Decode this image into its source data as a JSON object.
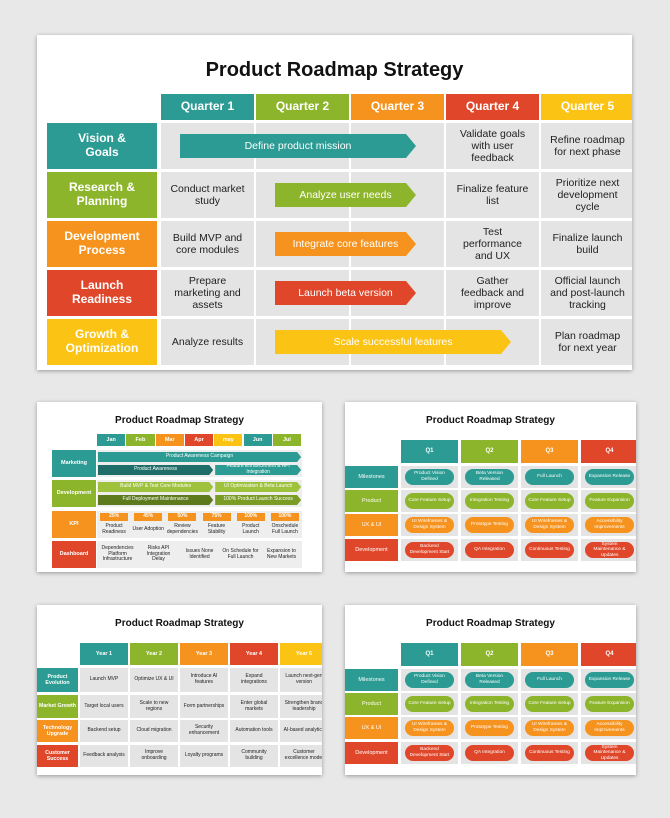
{
  "main": {
    "title": "Product Roadmap Strategy",
    "columns": [
      "Quarter 1",
      "Quarter 2",
      "Quarter 3",
      "Quarter 4",
      "Quarter 5"
    ],
    "rows": [
      {
        "label": "Vision & Goals",
        "items": [
          {
            "text": "Define product mission",
            "cols": [
              0,
              2
            ]
          },
          {
            "text": "Validate goals with user feedback",
            "cols": [
              3,
              3
            ]
          },
          {
            "text": "Refine roadmap for next phase",
            "cols": [
              4,
              4
            ]
          }
        ]
      },
      {
        "label": "Research & Planning",
        "items": [
          {
            "text": "Conduct market study",
            "cols": [
              0,
              0
            ]
          },
          {
            "text": "Analyze user needs",
            "cols": [
              1,
              2
            ]
          },
          {
            "text": "Finalize feature list",
            "cols": [
              3,
              3
            ]
          },
          {
            "text": "Prioritize next development cycle",
            "cols": [
              4,
              4
            ]
          }
        ]
      },
      {
        "label": "Development Process",
        "items": [
          {
            "text": "Build MVP and core modules",
            "cols": [
              0,
              0
            ]
          },
          {
            "text": "Integrate core features",
            "cols": [
              1,
              2
            ]
          },
          {
            "text": "Test performance and UX",
            "cols": [
              3,
              3
            ]
          },
          {
            "text": "Finalize launch build",
            "cols": [
              4,
              4
            ]
          }
        ]
      },
      {
        "label": "Launch Readiness",
        "items": [
          {
            "text": "Prepare marketing and assets",
            "cols": [
              0,
              0
            ]
          },
          {
            "text": "Launch beta version",
            "cols": [
              1,
              2
            ]
          },
          {
            "text": "Gather feedback and improve",
            "cols": [
              3,
              3
            ]
          },
          {
            "text": "Official launch and post-launch tracking",
            "cols": [
              4,
              4
            ]
          }
        ]
      },
      {
        "label": "Growth & Optimization",
        "items": [
          {
            "text": "Analyze results",
            "cols": [
              0,
              0
            ]
          },
          {
            "text": "Scale successful features",
            "cols": [
              1,
              3
            ]
          },
          {
            "text": "Plan roadmap for next year",
            "cols": [
              4,
              4
            ]
          }
        ]
      }
    ]
  },
  "months_slide": {
    "title": "Product Roadmap Strategy",
    "columns": [
      "Jan",
      "Feb",
      "Mar",
      "Apr",
      "may",
      "Jun",
      "Jul"
    ],
    "marketing": {
      "label": "Marketing",
      "lanes": [
        [
          {
            "text": "Product Awareness Campaign",
            "cols": [
              0,
              6
            ]
          }
        ],
        [
          {
            "text": "Product Awareness",
            "cols": [
              0,
              3
            ]
          },
          {
            "text": "Feature Enhancement & API Integration",
            "cols": [
              4,
              6
            ]
          }
        ]
      ]
    },
    "development": {
      "label": "Development",
      "lanes": [
        [
          {
            "text": "Build MVP & Test Core Modules",
            "cols": [
              0,
              3
            ]
          },
          {
            "text": "UI Optimization & Beta Launch",
            "cols": [
              4,
              6
            ]
          }
        ],
        [
          {
            "text": "Full Deployment Maintenance",
            "cols": [
              0,
              3
            ]
          },
          {
            "text": "100% Product Launch Success",
            "cols": [
              4,
              6
            ]
          }
        ]
      ]
    },
    "kpi": {
      "label": "KPI",
      "cells": [
        {
          "pct": "25%",
          "text": "Product Readiness"
        },
        {
          "pct": "45%",
          "text": "User Adoption"
        },
        {
          "pct": "50%",
          "text": "Review dependencies"
        },
        {
          "pct": "75%",
          "text": "Feature Stability"
        },
        {
          "pct": "100%",
          "text": "Product Launch"
        },
        {
          "pct": "100%",
          "text": "Onschedule Full Launch"
        }
      ]
    },
    "dashboard": {
      "label": "Dashboard",
      "cells": [
        "Dependencies Platform Infrastructure",
        "Risks API Integration Delay",
        "Issues None Identified",
        "On Schedule for Full Launch",
        "Expansion to New Markets"
      ]
    }
  },
  "milestones_slide": {
    "title": "Product Roadmap Strategy",
    "columns": [
      "Q1",
      "Q2",
      "Q3",
      "Q4"
    ],
    "rows": [
      {
        "label": "Milestones",
        "cells": [
          "Product Vision Defined",
          "Beta Version Released",
          "Full Launch",
          "Expansion Release"
        ]
      },
      {
        "label": "Product",
        "cells": [
          "Core Feature Setup",
          "Integration Testing",
          "Core Feature Setup",
          "Feature Expansion"
        ]
      },
      {
        "label": "UX & UI",
        "cells": [
          "UI Wireframes & Design System",
          "Prototype Testing",
          "UI Wireframes & Design System",
          "Accessibility Improvements"
        ]
      },
      {
        "label": "Development",
        "cells": [
          "Backend Development Start",
          "QA Integration",
          "Continuous Testing",
          "System Maintenance & Updates"
        ]
      }
    ]
  },
  "years_slide": {
    "title": "Product Roadmap Strategy",
    "columns": [
      "Year 1",
      "Year 2",
      "Year 3",
      "Year 4",
      "Year 5"
    ],
    "rows": [
      {
        "label": "Product Evolution",
        "cells": [
          "Launch MVP",
          "Optimize UX & UI",
          "Introduce AI features",
          "Expand integrations",
          "Launch next-gen version"
        ]
      },
      {
        "label": "Market Growth",
        "cells": [
          "Target local users",
          "Scale to new regions",
          "Form partnerships",
          "Enter global markets",
          "Strengthen brand leadership"
        ]
      },
      {
        "label": "Technology Upgrade",
        "cells": [
          "Backend setup",
          "Cloud migration",
          "Security enhancement",
          "Automation tools",
          "AI-based analytics"
        ]
      },
      {
        "label": "Customer Success",
        "cells": [
          "Feedback analysis",
          "Improve onboarding",
          "Loyalty programs",
          "Community building",
          "Customer excellence model"
        ]
      }
    ]
  },
  "milestones_slide_2": {
    "title": "Product Roadmap Strategy",
    "columns": [
      "Q1",
      "Q2",
      "Q3",
      "Q4"
    ],
    "rows": [
      {
        "label": "Milestones",
        "cells": [
          "Product Vision Defined",
          "Beta Version Released",
          "Full Launch",
          "Expansion Release"
        ]
      },
      {
        "label": "Product",
        "cells": [
          "Core Feature Setup",
          "Integration Testing",
          "Core Feature Setup",
          "Feature Expansion"
        ]
      },
      {
        "label": "UX & UI",
        "cells": [
          "UI Wireframes & Design System",
          "Prototype Testing",
          "UI Wireframes & Design System",
          "Accessibility Improvements"
        ]
      },
      {
        "label": "Development",
        "cells": [
          "Backend Development Start",
          "QA Integration",
          "Continuous Testing",
          "System Maintenance & Updates"
        ]
      }
    ]
  }
}
